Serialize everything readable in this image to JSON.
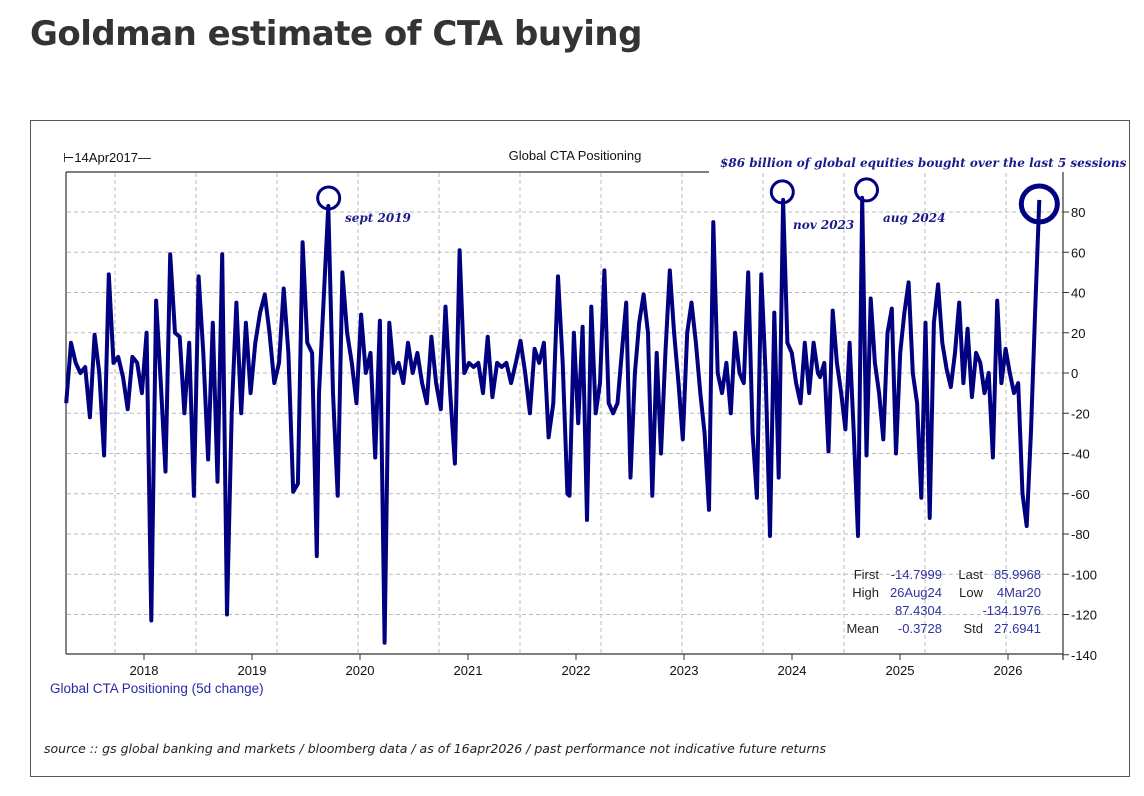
{
  "page": {
    "title": "Goldman estimate of CTA buying"
  },
  "chart_data": {
    "type": "line",
    "title": "Global CTA Positioning",
    "start_label": "14Apr2017",
    "headline": "$86 billion of global equities bought over the last 5 sessions",
    "legend": "Global CTA Positioning (5d change)",
    "source": "source :: gs global banking and markets / bloomberg data / as of 16apr2026 / past performance not indicative future returns",
    "xlim": [
      2017.28,
      2026.5
    ],
    "ylim": [
      -140,
      100
    ],
    "grid": true,
    "line_color": "#000080",
    "x_ticks": [
      {
        "value": 2018,
        "label": "2018"
      },
      {
        "value": 2019,
        "label": "2019"
      },
      {
        "value": 2020,
        "label": "2020"
      },
      {
        "value": 2021,
        "label": "2021"
      },
      {
        "value": 2022,
        "label": "2022"
      },
      {
        "value": 2023,
        "label": "2023"
      },
      {
        "value": 2024,
        "label": "2024"
      },
      {
        "value": 2025,
        "label": "2025"
      },
      {
        "value": 2026,
        "label": "2026"
      }
    ],
    "y_ticks": [
      80,
      60,
      40,
      20,
      0,
      -20,
      -40,
      -60,
      -80,
      -100,
      -120,
      -140
    ],
    "segments": [
      {
        "x_start": 2017.28,
        "x_end": 2019.6,
        "values": [
          -15,
          15,
          5,
          0,
          3,
          -22,
          19,
          0,
          -41,
          49,
          5,
          8,
          -2,
          -18,
          8,
          5,
          -10,
          20,
          -123,
          36,
          -5,
          -49,
          59,
          20,
          18,
          -20,
          15,
          -61,
          48,
          10,
          -43,
          25,
          -54,
          59,
          -120,
          -20,
          35,
          -20,
          25,
          -10,
          15,
          30,
          39,
          20,
          -5,
          5,
          42,
          10,
          -59,
          -55,
          65,
          15,
          10,
          -91
        ]
      },
      {
        "x_start": 2019.62,
        "x_end": 2021.92,
        "values": [
          -10,
          36,
          83,
          -10,
          -61,
          50,
          20,
          5,
          -15,
          29,
          0,
          10,
          -42,
          26,
          -134,
          25,
          0,
          5,
          -5,
          15,
          0,
          10,
          -5,
          -15,
          18,
          -5,
          -18,
          33,
          -10,
          -45,
          61,
          0,
          5,
          3,
          5,
          -10,
          18,
          -12,
          5,
          3,
          5,
          -5,
          5,
          16,
          0,
          -20,
          12,
          5,
          15,
          -32,
          -15,
          48,
          5,
          -60
        ]
      },
      {
        "x_start": 2021.94,
        "x_end": 2024.24,
        "values": [
          -61,
          20,
          -25,
          23,
          -73,
          33,
          -20,
          -5,
          51,
          -15,
          -20,
          -15,
          10,
          35,
          -52,
          0,
          25,
          39,
          20,
          -61,
          10,
          -40,
          10,
          51,
          20,
          -5,
          -33,
          20,
          35,
          15,
          -10,
          -30,
          -68,
          75,
          0,
          -10,
          5,
          -20,
          20,
          0,
          -5,
          50,
          -30,
          -62,
          49,
          0,
          -81,
          30,
          -52,
          86,
          15,
          10,
          -5,
          -15,
          15,
          -10,
          15,
          0
        ]
      },
      {
        "x_start": 2024.26,
        "x_end": 2026.29,
        "values": [
          -2,
          5,
          -39,
          31,
          5,
          -10,
          -28,
          15,
          -30,
          -81,
          87,
          -41,
          37,
          5,
          -10,
          -33,
          20,
          32,
          -40,
          10,
          30,
          45,
          0,
          -15,
          -62,
          25,
          -72,
          25,
          44,
          15,
          2,
          -7,
          10,
          35,
          -5,
          22,
          -12,
          10,
          5,
          -10,
          0,
          -42,
          36,
          -5,
          12,
          0,
          -10,
          -5,
          -60,
          -76,
          -30,
          30,
          86
        ]
      }
    ],
    "annotations": [
      {
        "x": 2019.71,
        "y": 83,
        "label": "sept 2019",
        "circle": "small"
      },
      {
        "x": 2023.91,
        "y": 86,
        "label": "nov 2023",
        "circle": "small"
      },
      {
        "x": 2024.69,
        "y": 87,
        "label": "aug 2024",
        "circle": "small"
      },
      {
        "x": 2026.29,
        "y": 84,
        "label": "",
        "circle": "large"
      }
    ],
    "stats": {
      "first_label": "First",
      "first": "-14.7999",
      "last_label": "Last",
      "last": "85.9968",
      "high_label": "High",
      "high_date": "26Aug24",
      "high": "87.4304",
      "low_label": "Low",
      "low_date": "4Mar20",
      "low": "-134.1976",
      "mean_label": "Mean",
      "mean": "-0.3728",
      "std_label": "Std",
      "std": "27.6941"
    }
  }
}
